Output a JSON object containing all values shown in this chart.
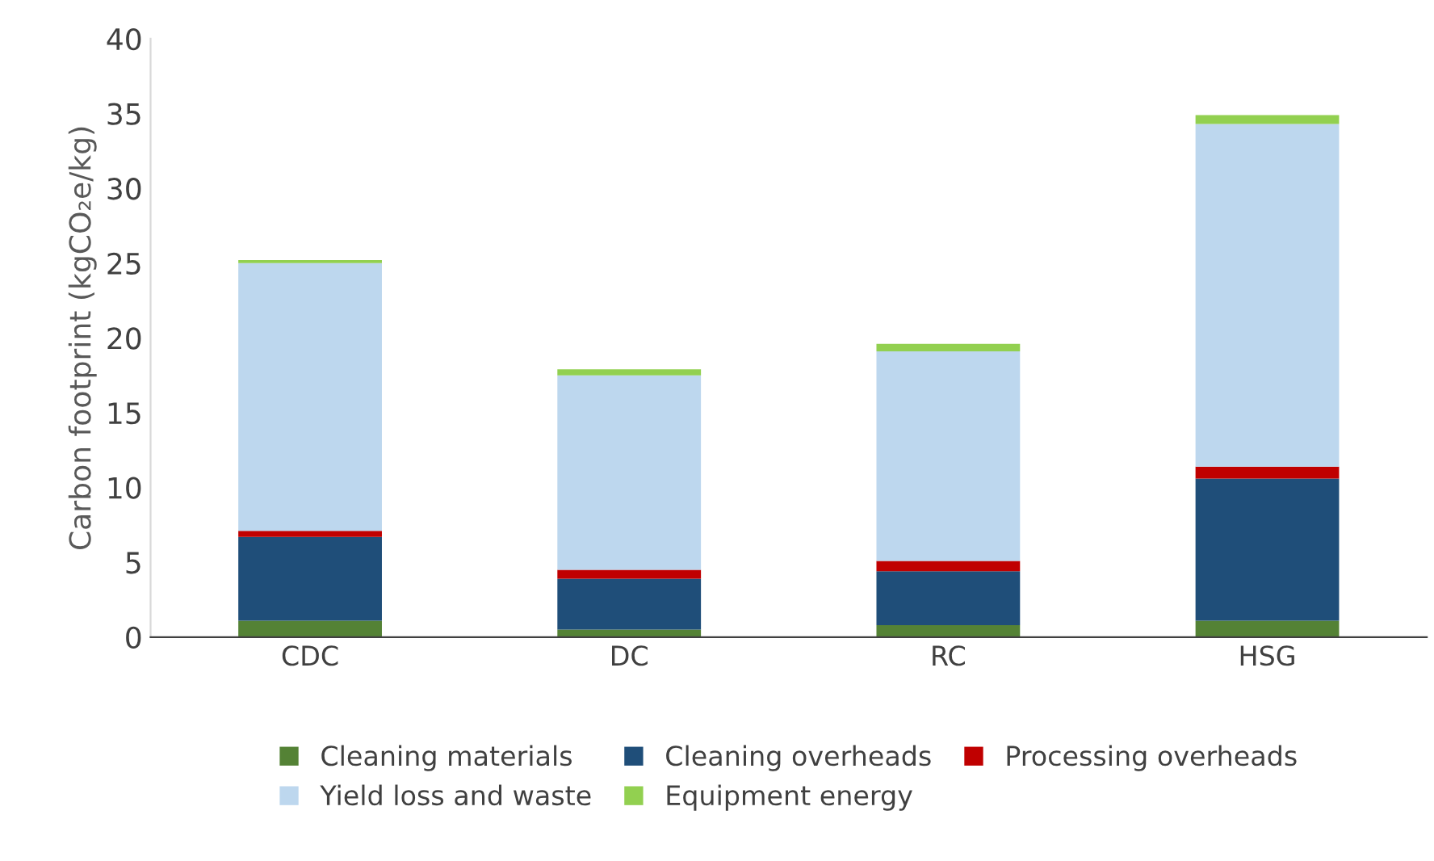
{
  "chart_data": {
    "type": "bar",
    "stacked": true,
    "ylabel": "Carbon footprint (kgCO₂e/kg)",
    "categories": [
      "CDC",
      "DC",
      "RC",
      "HSG"
    ],
    "series": [
      {
        "name": "Cleaning materials",
        "color": "#548235",
        "values": [
          1.1,
          0.5,
          0.8,
          1.1
        ]
      },
      {
        "name": "Cleaning overheads",
        "color": "#1f4e79",
        "values": [
          5.6,
          3.4,
          3.6,
          9.5
        ]
      },
      {
        "name": "Processing overheads",
        "color": "#c00000",
        "values": [
          0.4,
          0.6,
          0.7,
          0.8
        ]
      },
      {
        "name": "Yield loss and waste",
        "color": "#bdd7ee",
        "values": [
          17.9,
          13.0,
          14.0,
          22.9
        ]
      },
      {
        "name": "Equipment energy",
        "color": "#92d050",
        "values": [
          0.2,
          0.4,
          0.5,
          0.6
        ]
      }
    ],
    "ylim": [
      0,
      40
    ],
    "yticks": [
      0,
      5,
      10,
      15,
      20,
      25,
      30,
      35,
      40
    ],
    "grid": false,
    "legend": "bottom"
  }
}
